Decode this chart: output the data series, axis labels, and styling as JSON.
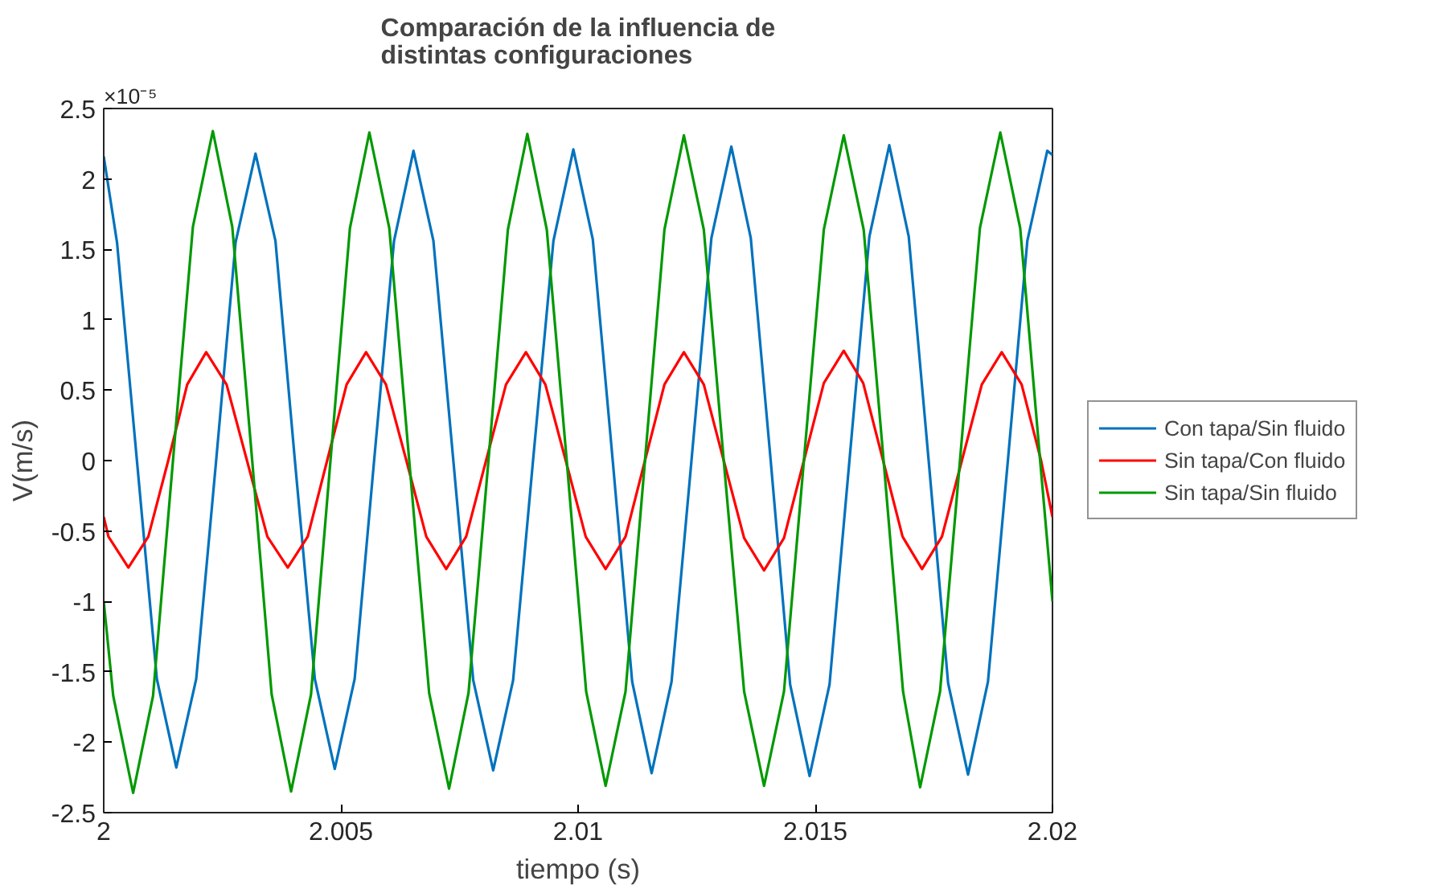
{
  "chart_data": {
    "type": "line",
    "title": "Comparación de la influencia de\ndistintas configuraciones",
    "xlabel": "tiempo (s)",
    "ylabel": "V(m/s)",
    "annotations": [
      "×10⁻⁵"
    ],
    "xlim": [
      2,
      2.02
    ],
    "xticks": [
      2,
      2.005,
      2.01,
      2.015,
      2.02
    ],
    "ylim": [
      -2.5,
      2.5
    ],
    "yticks": [
      -2.5,
      -2,
      -1.5,
      -1,
      -0.5,
      0,
      0.5,
      1,
      1.5,
      2,
      2.5
    ],
    "grid": false,
    "legend": "right",
    "line_style": "solid",
    "marker": "none",
    "series": [
      {
        "name": "Con tapa/Sin fluido",
        "color": "#0072bd",
        "x": [
          2.0,
          2.00028,
          2.0007,
          2.00112,
          2.00153,
          2.00195,
          2.00237,
          2.00278,
          2.0032,
          2.00362,
          2.00403,
          2.00445,
          2.00487,
          2.00529,
          2.0057,
          2.00612,
          2.00653,
          2.00695,
          2.00737,
          2.00779,
          2.00821,
          2.00863,
          2.00905,
          2.00948,
          2.0099,
          2.01031,
          2.01073,
          2.01114,
          2.01155,
          2.01197,
          2.01239,
          2.01281,
          2.01323,
          2.01364,
          2.01406,
          2.01447,
          2.01488,
          2.0153,
          2.01572,
          2.01614,
          2.01656,
          2.01697,
          2.01739,
          2.0178,
          2.01822,
          2.01864,
          2.01906,
          2.01947,
          2.01989,
          2.02
        ],
        "values": [
          2.16,
          1.55,
          0,
          -1.55,
          -2.18,
          -1.55,
          0,
          1.55,
          2.18,
          1.56,
          0,
          -1.55,
          -2.19,
          -1.55,
          0,
          1.56,
          2.2,
          1.56,
          0,
          -1.56,
          -2.2,
          -1.56,
          0,
          1.56,
          2.21,
          1.57,
          0,
          -1.57,
          -2.22,
          -1.57,
          0,
          1.58,
          2.23,
          1.58,
          0,
          -1.59,
          -2.24,
          -1.59,
          0,
          1.59,
          2.24,
          1.59,
          0,
          -1.58,
          -2.23,
          -1.57,
          0,
          1.56,
          2.2,
          2.17
        ]
      },
      {
        "name": "Sin tapa/Con fluido",
        "color": "#ff0000",
        "x": [
          2.0,
          2.0001,
          2.00052,
          2.00094,
          2.00136,
          2.00176,
          2.00216,
          2.00259,
          2.00302,
          2.00345,
          2.00388,
          2.0043,
          2.00471,
          2.00512,
          2.00553,
          2.00595,
          2.00638,
          2.0068,
          2.00722,
          2.00764,
          2.00806,
          2.00848,
          2.0089,
          2.00931,
          2.00974,
          2.01016,
          2.01058,
          2.011,
          2.01141,
          2.01182,
          2.01223,
          2.01265,
          2.01307,
          2.0135,
          2.01392,
          2.01434,
          2.01476,
          2.01518,
          2.0156,
          2.01601,
          2.01643,
          2.01684,
          2.01725,
          2.01767,
          2.01809,
          2.01851,
          2.01893,
          2.01935,
          2.01976,
          2.02
        ],
        "values": [
          -0.4,
          -0.54,
          -0.76,
          -0.54,
          0,
          0.54,
          0.77,
          0.54,
          0,
          -0.54,
          -0.76,
          -0.54,
          0,
          0.54,
          0.77,
          0.54,
          0,
          -0.54,
          -0.77,
          -0.54,
          0,
          0.54,
          0.77,
          0.54,
          0,
          -0.54,
          -0.77,
          -0.54,
          0,
          0.54,
          0.77,
          0.54,
          0,
          -0.55,
          -0.78,
          -0.55,
          0,
          0.55,
          0.78,
          0.55,
          0,
          -0.54,
          -0.77,
          -0.54,
          0,
          0.54,
          0.77,
          0.54,
          0,
          -0.4
        ]
      },
      {
        "name": "Sin tapa/Sin fluido",
        "color": "#009900",
        "x": [
          2.0,
          2.0002,
          2.00062,
          2.00104,
          2.00146,
          2.00188,
          2.0023,
          2.00271,
          2.00313,
          2.00354,
          2.00395,
          2.00437,
          2.00478,
          2.00519,
          2.0056,
          2.00602,
          2.00644,
          2.00686,
          2.00728,
          2.00769,
          2.00811,
          2.00852,
          2.00893,
          2.00934,
          2.00976,
          2.01017,
          2.01058,
          2.011,
          2.01141,
          2.01182,
          2.01223,
          2.01265,
          2.01307,
          2.0135,
          2.01392,
          2.01434,
          2.01476,
          2.01518,
          2.0156,
          2.01602,
          2.01644,
          2.01685,
          2.01721,
          2.01763,
          2.01805,
          2.01847,
          2.0189,
          2.01932,
          2.01974,
          2.02
        ],
        "values": [
          -1.0,
          -1.67,
          -2.36,
          -1.67,
          0,
          1.66,
          2.34,
          1.66,
          0,
          -1.66,
          -2.35,
          -1.66,
          0,
          1.65,
          2.33,
          1.65,
          0,
          -1.65,
          -2.33,
          -1.65,
          0,
          1.64,
          2.32,
          1.64,
          0,
          -1.64,
          -2.31,
          -1.64,
          0,
          1.64,
          2.31,
          1.64,
          0,
          -1.64,
          -2.31,
          -1.64,
          0,
          1.64,
          2.31,
          1.64,
          0,
          -1.64,
          -2.32,
          -1.64,
          0,
          1.65,
          2.33,
          1.65,
          0,
          -1.0
        ]
      }
    ]
  }
}
